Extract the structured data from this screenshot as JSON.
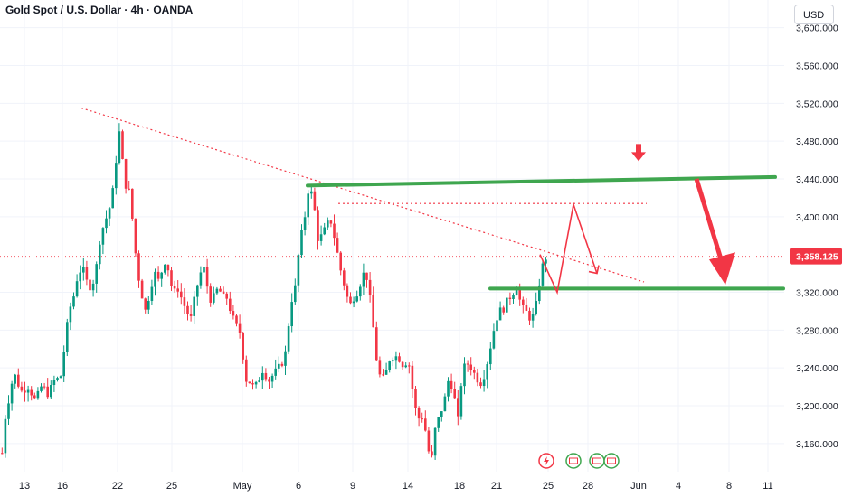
{
  "header": {
    "title": "Gold Spot / U.S. Dollar · 4h · OANDA",
    "currency_button": "USD"
  },
  "price_axis": {
    "labels": [
      "3,600.000",
      "3,560.000",
      "3,520.000",
      "3,480.000",
      "3,440.000",
      "3,400.000",
      "3,320.000",
      "3,280.000",
      "3,240.000",
      "3,200.000",
      "3,160.000"
    ],
    "current_price": "3,358.125",
    "current_price_color": "#f23645"
  },
  "chart_data": {
    "type": "candlestick",
    "symbol": "XAUUSD",
    "timeframe": "4h",
    "ylim": [
      3120,
      3610
    ],
    "x_tick_labels": [
      "13",
      "16",
      "22",
      "25",
      "May",
      "6",
      "9",
      "14",
      "18",
      "21",
      "25",
      "28",
      "Jun",
      "4",
      "8",
      "11"
    ],
    "colors": {
      "up": "#089981",
      "down": "#f23645",
      "annotation_green": "#3fa64f",
      "annotation_red": "#f23645"
    },
    "price_path": [
      [
        0,
        3135
      ],
      [
        3,
        3180
      ],
      [
        8,
        3205
      ],
      [
        14,
        3235
      ],
      [
        22,
        3215
      ],
      [
        30,
        3220
      ],
      [
        38,
        3205
      ],
      [
        45,
        3222
      ],
      [
        52,
        3212
      ],
      [
        60,
        3230
      ],
      [
        65,
        3226
      ],
      [
        70,
        3262
      ],
      [
        75,
        3300
      ],
      [
        80,
        3315
      ],
      [
        85,
        3340
      ],
      [
        90,
        3346
      ],
      [
        95,
        3330
      ],
      [
        100,
        3324
      ],
      [
        105,
        3345
      ],
      [
        110,
        3382
      ],
      [
        115,
        3395
      ],
      [
        120,
        3410
      ],
      [
        124,
        3430
      ],
      [
        128,
        3470
      ],
      [
        131,
        3492
      ],
      [
        134,
        3460
      ],
      [
        137,
        3434
      ],
      [
        141,
        3430
      ],
      [
        146,
        3390
      ],
      [
        150,
        3346
      ],
      [
        155,
        3320
      ],
      [
        160,
        3298
      ],
      [
        165,
        3325
      ],
      [
        170,
        3340
      ],
      [
        175,
        3330
      ],
      [
        180,
        3355
      ],
      [
        185,
        3344
      ],
      [
        190,
        3318
      ],
      [
        195,
        3325
      ],
      [
        200,
        3312
      ],
      [
        205,
        3300
      ],
      [
        210,
        3292
      ],
      [
        215,
        3320
      ],
      [
        220,
        3340
      ],
      [
        225,
        3345
      ],
      [
        230,
        3312
      ],
      [
        235,
        3315
      ],
      [
        240,
        3325
      ],
      [
        245,
        3315
      ],
      [
        250,
        3314
      ],
      [
        255,
        3295
      ],
      [
        260,
        3285
      ],
      [
        265,
        3275
      ],
      [
        270,
        3228
      ],
      [
        275,
        3225
      ],
      [
        280,
        3218
      ],
      [
        285,
        3228
      ],
      [
        290,
        3240
      ],
      [
        295,
        3225
      ],
      [
        300,
        3232
      ],
      [
        305,
        3238
      ],
      [
        310,
        3244
      ],
      [
        315,
        3258
      ],
      [
        320,
        3308
      ],
      [
        325,
        3325
      ],
      [
        330,
        3372
      ],
      [
        335,
        3395
      ],
      [
        340,
        3432
      ],
      [
        345,
        3420
      ],
      [
        350,
        3377
      ],
      [
        355,
        3380
      ],
      [
        360,
        3392
      ],
      [
        365,
        3395
      ],
      [
        370,
        3370
      ],
      [
        375,
        3345
      ],
      [
        380,
        3325
      ],
      [
        385,
        3305
      ],
      [
        390,
        3315
      ],
      [
        395,
        3322
      ],
      [
        400,
        3340
      ],
      [
        405,
        3335
      ],
      [
        410,
        3295
      ],
      [
        415,
        3250
      ],
      [
        420,
        3225
      ],
      [
        425,
        3234
      ],
      [
        430,
        3251
      ],
      [
        435,
        3253
      ],
      [
        440,
        3250
      ],
      [
        445,
        3242
      ],
      [
        450,
        3250
      ],
      [
        455,
        3215
      ],
      [
        460,
        3185
      ],
      [
        465,
        3190
      ],
      [
        470,
        3170
      ],
      [
        475,
        3135
      ],
      [
        480,
        3176
      ],
      [
        485,
        3190
      ],
      [
        490,
        3205
      ],
      [
        495,
        3230
      ],
      [
        500,
        3215
      ],
      [
        505,
        3185
      ],
      [
        510,
        3238
      ],
      [
        515,
        3245
      ],
      [
        520,
        3240
      ],
      [
        525,
        3230
      ],
      [
        530,
        3224
      ],
      [
        535,
        3235
      ],
      [
        540,
        3258
      ],
      [
        545,
        3282
      ],
      [
        550,
        3300
      ],
      [
        555,
        3302
      ],
      [
        560,
        3312
      ],
      [
        565,
        3318
      ],
      [
        570,
        3326
      ],
      [
        575,
        3305
      ],
      [
        580,
        3300
      ],
      [
        585,
        3292
      ],
      [
        590,
        3298
      ],
      [
        595,
        3330
      ],
      [
        600,
        3355
      ],
      [
        604,
        3358
      ]
    ],
    "annotations": {
      "resistance_line": {
        "x": [
          340,
          857
        ],
        "y": [
          3433,
          3442
        ]
      },
      "support_line": {
        "x": [
          542,
          866
        ],
        "y": [
          3324,
          3324
        ]
      },
      "dotted_level": {
        "x": [
          374,
          715
        ],
        "y": [
          3414,
          3414
        ]
      },
      "descending_trendline": {
        "x": [
          90,
          712
        ],
        "y": [
          3515,
          3331
        ]
      },
      "current_price_line": {
        "y": 3358.125
      },
      "projection_path": {
        "x": [
          597,
          616,
          634,
          660
        ],
        "y": [
          3360,
          3320,
          3413,
          3340
        ]
      },
      "projection_end_arrow": {
        "x": 660,
        "y": 3340
      },
      "big_down_arrow": {
        "x": [
          770,
          802
        ],
        "y": [
          3440,
          3326
        ]
      },
      "small_down_arrow": {
        "x": 706,
        "y": 3454
      }
    },
    "event_icons": [
      "lightning-event-icon",
      "economic-event-icon",
      "economic-event-icon",
      "economic-event-icon"
    ]
  }
}
